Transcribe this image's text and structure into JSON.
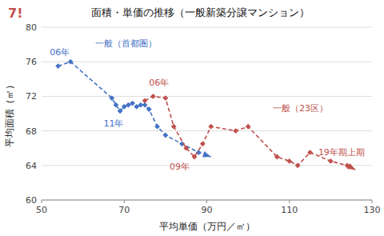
{
  "chart_data": {
    "type": "line",
    "title": "面積・単価の推移（一般新築分譲マンション）",
    "x_label": "平均単価（万円／㎡）",
    "y_label": "平均面積（㎡）",
    "xlim": [
      50,
      130
    ],
    "ylim": [
      60,
      80
    ],
    "xticks": [
      50,
      70,
      90,
      110,
      130
    ],
    "yticks": [
      60,
      64,
      68,
      72,
      76,
      80
    ],
    "grid": true,
    "series": [
      {
        "color": "#4472C4",
        "marker": "diamond",
        "line_style": "dashed",
        "x": [
          54,
          57,
          67,
          68,
          69,
          70,
          71,
          72,
          73,
          74,
          75,
          76,
          78,
          80,
          84,
          88,
          91
        ],
        "values": [
          75.5,
          76.0,
          71.8,
          71.0,
          70.3,
          70.8,
          71.0,
          71.2,
          70.8,
          71.0,
          71.0,
          70.5,
          68.5,
          67.5,
          66.5,
          65.5,
          65.0
        ]
      },
      {
        "color": "#C0504D",
        "marker": "diamond",
        "line_style": "dashed",
        "x": [
          75,
          77,
          80,
          82,
          85,
          87,
          89,
          91,
          97,
          100,
          107,
          110,
          112,
          115,
          120,
          124,
          126
        ],
        "values": [
          71.5,
          72.0,
          71.8,
          68.5,
          66.0,
          65.0,
          66.5,
          68.5,
          68.0,
          68.5,
          65.0,
          64.5,
          64.0,
          65.5,
          64.5,
          64.0,
          63.5
        ]
      }
    ],
    "annotations": [
      {
        "text": "06年",
        "x": 52,
        "y": 76.8,
        "color": "#4472C4"
      },
      {
        "text": "一般（首都圏）",
        "x": 63,
        "y": 77.8,
        "color": "#4472C4"
      },
      {
        "text": "11年",
        "x": 65,
        "y": 68.5,
        "color": "#4472C4"
      },
      {
        "text": "06年",
        "x": 76,
        "y": 73.2,
        "color": "#C0504D"
      },
      {
        "text": "09年",
        "x": 81,
        "y": 63.5,
        "color": "#C0504D"
      },
      {
        "text": "一般（23区）",
        "x": 106,
        "y": 70.3,
        "color": "#C0504D"
      },
      {
        "text": "19年期上期",
        "x": 117,
        "y": 65.2,
        "color": "#C0504D"
      }
    ],
    "logo": {
      "text": "7!",
      "color": "#C0504D"
    }
  }
}
